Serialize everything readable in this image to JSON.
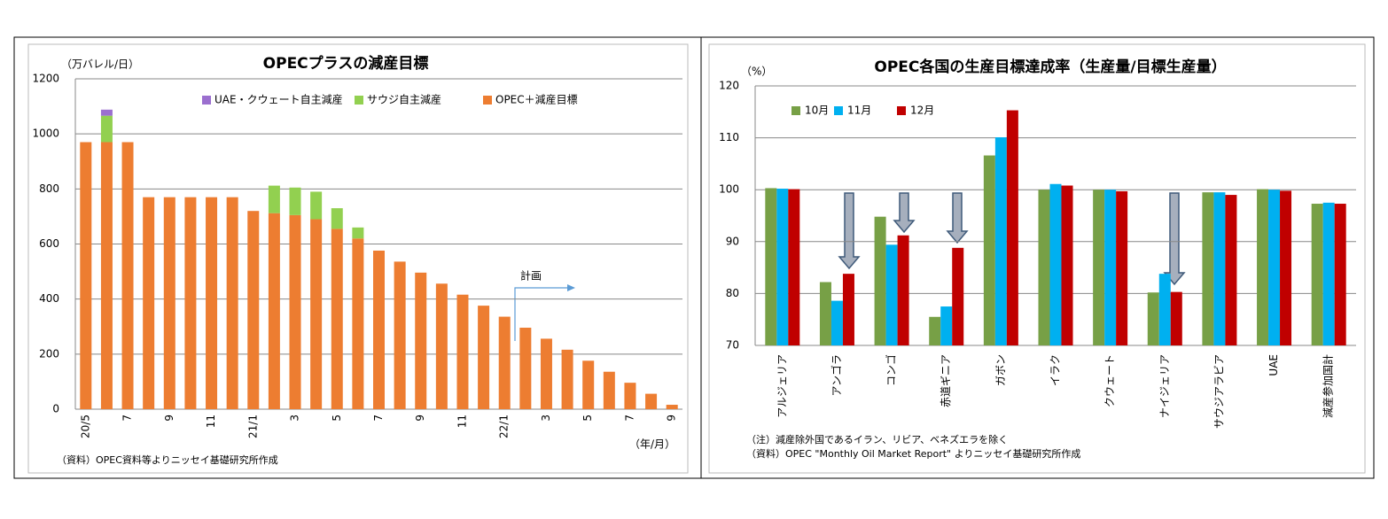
{
  "chart_data": [
    {
      "type": "bar",
      "stacked": true,
      "title": "OPECプラスの減産目標",
      "y_label": "（万バレル/日）",
      "x_label": "（年/月）",
      "annotation": "計画",
      "source": "（資料）OPEC資料等よりニッセイ基礎研究所作成",
      "categories": [
        "20/5",
        null,
        "7",
        null,
        "9",
        null,
        "11",
        null,
        "21/1",
        null,
        "3",
        null,
        "5",
        null,
        "7",
        null,
        "9",
        null,
        "11",
        null,
        "22/1",
        null,
        "3",
        null,
        "5",
        null,
        "7",
        null,
        "9"
      ],
      "series": [
        {
          "name": "UAE・クウェート自主減産",
          "color": "#9b6fcf",
          "values": [
            0,
            22,
            0,
            0,
            0,
            0,
            0,
            0,
            0,
            0,
            0,
            0,
            0,
            0,
            0,
            0,
            0,
            0,
            0,
            0,
            0,
            0,
            0,
            0,
            0,
            0,
            0,
            0,
            0
          ]
        },
        {
          "name": "サウジ自主減産",
          "color": "#92d050",
          "values": [
            0,
            96,
            0,
            0,
            0,
            0,
            0,
            0,
            0,
            100,
            100,
            100,
            75,
            40,
            0,
            0,
            0,
            0,
            0,
            0,
            0,
            0,
            0,
            0,
            0,
            0,
            0,
            0,
            0
          ]
        },
        {
          "name": "OPEC＋減産目標",
          "color": "#ed7d31",
          "values": [
            970,
            970,
            970,
            770,
            770,
            770,
            770,
            770,
            720,
            712,
            705,
            690,
            655,
            620,
            576,
            536,
            496,
            456,
            416,
            376,
            336,
            296,
            256,
            216,
            176,
            136,
            96,
            56,
            16
          ]
        }
      ],
      "ylim": [
        0,
        1200
      ],
      "yticks": [
        0,
        200,
        400,
        600,
        800,
        1000,
        1200
      ],
      "grid": true,
      "legend": "top"
    },
    {
      "type": "bar",
      "stacked": false,
      "title": "OPEC各国の生産目標達成率（生産量/目標生産量）",
      "y_label": "（%）",
      "notes": [
        "（注）減産除外国であるイラン、リビア、ベネズエラを除く",
        "（資料）OPEC \"Monthly Oil Market Report\" よりニッセイ基礎研究所作成"
      ],
      "categories": [
        "アルジェリア",
        "アンゴラ",
        "コンゴ",
        "赤道ギニア",
        "ガボン",
        "イラク",
        "クウェート",
        "ナイジェリア",
        "サウジアラビア",
        "UAE",
        "減産参加国計"
      ],
      "series": [
        {
          "name": "10月",
          "color": "#77a046",
          "values": [
            100.3,
            82.2,
            94.8,
            75.5,
            106.6,
            100.0,
            100.0,
            80.2,
            99.5,
            100.1,
            97.3
          ]
        },
        {
          "name": "11月",
          "color": "#00b0f0",
          "values": [
            100.2,
            78.6,
            89.4,
            77.5,
            110.1,
            101.1,
            100.0,
            83.8,
            99.5,
            100.0,
            97.5
          ]
        },
        {
          "name": "12月",
          "color": "#c00000",
          "values": [
            100.1,
            83.8,
            91.2,
            88.8,
            115.3,
            100.8,
            99.7,
            80.3,
            99.0,
            99.8,
            97.3
          ]
        }
      ],
      "ylim": [
        70,
        120
      ],
      "yticks": [
        70,
        80,
        90,
        100,
        110,
        120
      ],
      "grid": true,
      "legend": "top-left"
    }
  ]
}
